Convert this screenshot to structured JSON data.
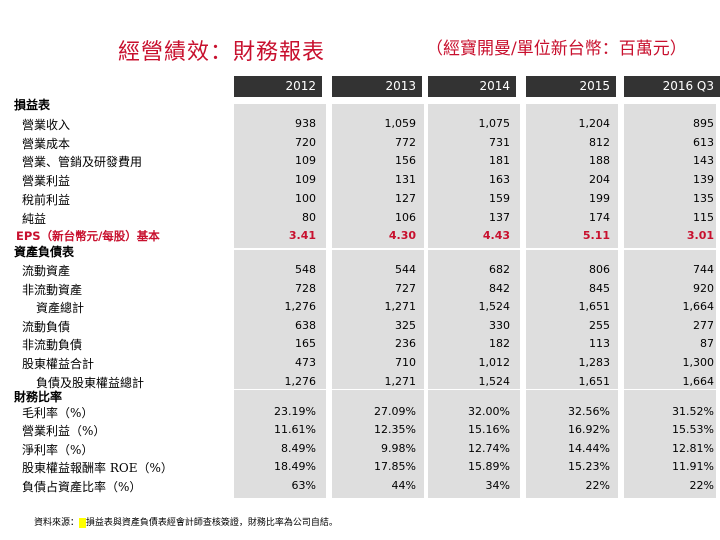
{
  "title": "經營績效：財務報表",
  "subtitle": "（經寶開曼/單位新台幣：百萬元）",
  "years": [
    "2012",
    "2013",
    "2014",
    "2015",
    "2016 Q3"
  ],
  "sections": {
    "income": "損益表",
    "balance": "資產負債表",
    "ratios": "財務比率"
  },
  "income_rows": [
    {
      "label": "營業收入",
      "values": [
        "938",
        "1,059",
        "1,075",
        "1,204",
        "895"
      ]
    },
    {
      "label": "營業成本",
      "values": [
        "720",
        "772",
        "731",
        "812",
        "613"
      ]
    },
    {
      "label": "營業、管銷及研發費用",
      "values": [
        "109",
        "156",
        "181",
        "188",
        "143"
      ]
    },
    {
      "label": "營業利益",
      "values": [
        "109",
        "131",
        "163",
        "204",
        "139"
      ]
    },
    {
      "label": "稅前利益",
      "values": [
        "100",
        "127",
        "159",
        "199",
        "135"
      ]
    },
    {
      "label": "純益",
      "values": [
        "80",
        "106",
        "137",
        "174",
        "115"
      ]
    },
    {
      "label": "EPS（新台幣元/每股）基本",
      "values": [
        "3.41",
        "4.30",
        "4.43",
        "5.11",
        "3.01"
      ]
    }
  ],
  "balance_rows": [
    {
      "label": "流動資產",
      "values": [
        "548",
        "544",
        "682",
        "806",
        "744"
      ]
    },
    {
      "label": "非流動資產",
      "values": [
        "728",
        "727",
        "842",
        "845",
        "920"
      ]
    },
    {
      "label": "資產總計",
      "values": [
        "1,276",
        "1,271",
        "1,524",
        "1,651",
        "1,664"
      ]
    },
    {
      "label": "流動負債",
      "values": [
        "638",
        "325",
        "330",
        "255",
        "277"
      ]
    },
    {
      "label": "非流動負債",
      "values": [
        "165",
        "236",
        "182",
        "113",
        "87"
      ]
    },
    {
      "label": "股東權益合計",
      "values": [
        "473",
        "710",
        "1,012",
        "1,283",
        "1,300"
      ]
    },
    {
      "label": "負債及股東權益總計",
      "values": [
        "1,276",
        "1,271",
        "1,524",
        "1,651",
        "1,664"
      ]
    }
  ],
  "ratio_rows": [
    {
      "label": "毛利率（%）",
      "values": [
        "23.19%",
        "27.09%",
        "32.00%",
        "32.56%",
        "31.52%"
      ]
    },
    {
      "label": "營業利益（%）",
      "values": [
        "11.61%",
        "12.35%",
        "15.16%",
        "16.92%",
        "15.53%"
      ]
    },
    {
      "label": "淨利率（%）",
      "values": [
        "8.49%",
        "9.98%",
        "12.74%",
        "14.44%",
        "12.81%"
      ]
    },
    {
      "label": "股東權益報酬率 ROE（%）",
      "values": [
        "18.49%",
        "17.85%",
        "15.89%",
        "15.23%",
        "11.91%"
      ]
    },
    {
      "label": "負債占資產比率（%）",
      "values": [
        "63%",
        "44%",
        "34%",
        "22%",
        "22%"
      ]
    }
  ],
  "footer": {
    "prefix": "資料來源：",
    "highlight": " ",
    "text": "損益表與資產負債表經會計師查核簽證，財務比率為公司自結。"
  },
  "colors": {
    "accent": "#c8102e",
    "header_bg": "#333333",
    "band_bg": "#dedede"
  }
}
